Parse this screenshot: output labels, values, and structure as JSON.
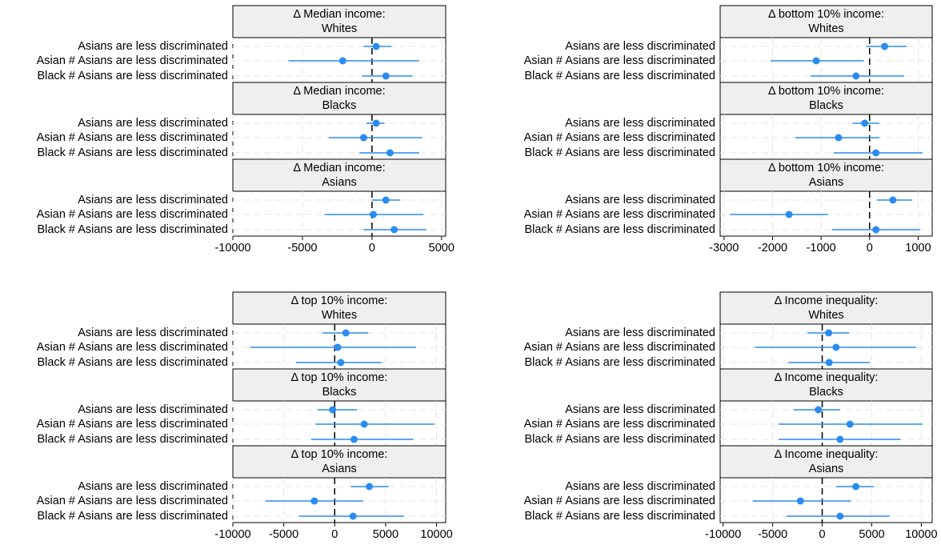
{
  "chart_data": [
    {
      "type": "coefplot",
      "color": "#2a8cf0",
      "grid": true,
      "refline": 0,
      "xlim": [
        -10000,
        5300
      ],
      "xticks": [
        -10000,
        -5000,
        0,
        5000
      ],
      "facets": [
        {
          "title": "Δ Median income:",
          "group": "Whites",
          "categories": [
            "Asians are less discriminated",
            "Asian # Asians are less discriminated",
            "Black # Asians are less discriminated"
          ],
          "values": [
            300,
            -2100,
            1000
          ],
          "lower": [
            -600,
            -6000,
            -700
          ],
          "upper": [
            1400,
            3400,
            2900
          ]
        },
        {
          "title": "Δ Median income:",
          "group": "Blacks",
          "categories": [
            "Asians are less discriminated",
            "Asian # Asians are less discriminated",
            "Black # Asians are less discriminated"
          ],
          "values": [
            300,
            -600,
            1300
          ],
          "lower": [
            -400,
            -3100,
            -900
          ],
          "upper": [
            900,
            3600,
            3400
          ]
        },
        {
          "title": "Δ Median income:",
          "group": "Asians",
          "categories": [
            "Asians are less discriminated",
            "Asian # Asians are less discriminated",
            "Black # Asians are less discriminated"
          ],
          "values": [
            1000,
            100,
            1600
          ],
          "lower": [
            0,
            -3400,
            -600
          ],
          "upper": [
            2000,
            3700,
            3900
          ]
        }
      ]
    },
    {
      "type": "coefplot",
      "color": "#2a8cf0",
      "grid": true,
      "refline": 0,
      "xlim": [
        -3080,
        1290
      ],
      "xticks": [
        -3000,
        -2000,
        -1000,
        0,
        1000
      ],
      "facets": [
        {
          "title": "Δ bottom 10% income:",
          "group": "Whites",
          "categories": [
            "Asians are less discriminated",
            "Asian # Asians are less discriminated",
            "Black # Asians are less discriminated"
          ],
          "values": [
            310,
            -1100,
            -280
          ],
          "lower": [
            -70,
            -2040,
            -1220
          ],
          "upper": [
            760,
            -120,
            710
          ]
        },
        {
          "title": "Δ bottom 10% income:",
          "group": "Blacks",
          "categories": [
            "Asians are less discriminated",
            "Asian # Asians are less discriminated",
            "Black # Asians are less discriminated"
          ],
          "values": [
            -100,
            -640,
            130
          ],
          "lower": [
            -350,
            -1530,
            -740
          ],
          "upper": [
            200,
            200,
            1090
          ]
        },
        {
          "title": "Δ bottom 10% income:",
          "group": "Asians",
          "categories": [
            "Asians are less discriminated",
            "Asian # Asians are less discriminated",
            "Black # Asians are less discriminated"
          ],
          "values": [
            480,
            -1660,
            130
          ],
          "lower": [
            150,
            -2880,
            -770
          ],
          "upper": [
            870,
            -860,
            1040
          ]
        }
      ]
    },
    {
      "type": "coefplot",
      "color": "#2a8cf0",
      "grid": true,
      "refline": 0,
      "xlim": [
        -10000,
        10900
      ],
      "xticks": [
        -10000,
        -5000,
        0,
        5000,
        10000
      ],
      "facets": [
        {
          "title": "Δ top 10% income:",
          "group": "Whites",
          "categories": [
            "Asians are less discriminated",
            "Asian # Asians are less discriminated",
            "Black # Asians are less discriminated"
          ],
          "values": [
            1100,
            300,
            600
          ],
          "lower": [
            -1200,
            -8300,
            -3800
          ],
          "upper": [
            3300,
            8000,
            4600
          ]
        },
        {
          "title": "Δ top 10% income:",
          "group": "Blacks",
          "categories": [
            "Asians are less discriminated",
            "Asian # Asians are less discriminated",
            "Black # Asians are less discriminated"
          ],
          "values": [
            -200,
            2900,
            1900
          ],
          "lower": [
            -1700,
            -1900,
            -2300
          ],
          "upper": [
            2200,
            9800,
            7700
          ]
        },
        {
          "title": "Δ top 10% income:",
          "group": "Asians",
          "categories": [
            "Asians are less discriminated",
            "Asian # Asians are less discriminated",
            "Black # Asians are less discriminated"
          ],
          "values": [
            3400,
            -2000,
            1800
          ],
          "lower": [
            1600,
            -6800,
            -3500
          ],
          "upper": [
            5300,
            2800,
            6800
          ]
        }
      ]
    },
    {
      "type": "coefplot",
      "color": "#2a8cf0",
      "grid": true,
      "refline": 0,
      "xlim": [
        -10300,
        11100
      ],
      "xticks": [
        -10000,
        -5000,
        0,
        5000,
        10000
      ],
      "facets": [
        {
          "title": "Δ Income inequality:",
          "group": "Whites",
          "categories": [
            "Asians are less discriminated",
            "Asian # Asians are less discriminated",
            "Black # Asians are less discriminated"
          ],
          "values": [
            650,
            1400,
            700
          ],
          "lower": [
            -1500,
            -6800,
            -3400
          ],
          "upper": [
            2700,
            9500,
            4800
          ]
        },
        {
          "title": "Δ Income inequality:",
          "group": "Blacks",
          "categories": [
            "Asians are less discriminated",
            "Asian # Asians are less discriminated",
            "Black # Asians are less discriminated"
          ],
          "values": [
            -400,
            2800,
            1800
          ],
          "lower": [
            -2900,
            -4400,
            -4400
          ],
          "upper": [
            1800,
            10100,
            7900
          ]
        },
        {
          "title": "Δ Income inequality:",
          "group": "Asians",
          "categories": [
            "Asians are less discriminated",
            "Asian # Asians are less discriminated",
            "Black # Asians are less discriminated"
          ],
          "values": [
            3400,
            -2200,
            1800
          ],
          "lower": [
            1400,
            -7000,
            -3600
          ],
          "upper": [
            5200,
            2900,
            6800
          ]
        }
      ]
    }
  ]
}
